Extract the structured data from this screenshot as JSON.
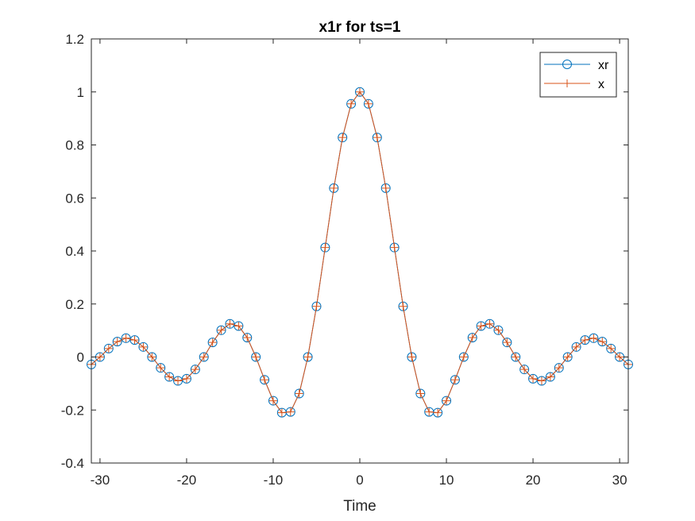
{
  "chart_data": {
    "type": "line",
    "title": "x1r for ts=1",
    "xlabel": "Time",
    "ylabel": "",
    "xlim": [
      -31,
      31
    ],
    "ylim": [
      -0.4,
      1.2
    ],
    "xticks": [
      -30,
      -20,
      -10,
      0,
      10,
      20,
      30
    ],
    "yticks": [
      -0.4,
      -0.2,
      0,
      0.2,
      0.4,
      0.6,
      0.8,
      1,
      1.2
    ],
    "ytick_labels": [
      "-0.4",
      "-0.2",
      "0",
      "0.2",
      "0.4",
      "0.6",
      "0.8",
      "1",
      "1.2"
    ],
    "grid": false,
    "legend_position": "top-right",
    "x": [
      -31,
      -30,
      -29,
      -28,
      -27,
      -26,
      -25,
      -24,
      -23,
      -22,
      -21,
      -20,
      -19,
      -18,
      -17,
      -16,
      -15,
      -14,
      -13,
      -12,
      -11,
      -10,
      -9,
      -8,
      -7,
      -6,
      -5,
      -4,
      -3,
      -2,
      -1,
      0,
      1,
      2,
      3,
      4,
      5,
      6,
      7,
      8,
      9,
      10,
      11,
      12,
      13,
      14,
      15,
      16,
      17,
      18,
      19,
      20,
      21,
      22,
      23,
      24,
      25,
      26,
      27,
      28,
      29,
      30,
      31
    ],
    "series": [
      {
        "name": "xr",
        "color": "#0072BD",
        "marker": "circle",
        "values": [
          -0.028,
          0.0,
          0.032,
          0.058,
          0.071,
          0.064,
          0.038,
          0.0,
          -0.041,
          -0.075,
          -0.09,
          -0.082,
          -0.047,
          0.0,
          0.055,
          0.101,
          0.125,
          0.117,
          0.073,
          0.0,
          -0.086,
          -0.165,
          -0.21,
          -0.207,
          -0.138,
          0.0,
          0.191,
          0.413,
          0.637,
          0.828,
          0.955,
          1.0,
          0.955,
          0.828,
          0.637,
          0.413,
          0.191,
          0.0,
          -0.138,
          -0.207,
          -0.21,
          -0.165,
          -0.086,
          0.0,
          0.073,
          0.117,
          0.125,
          0.101,
          0.055,
          0.0,
          -0.047,
          -0.082,
          -0.09,
          -0.075,
          -0.041,
          0.0,
          0.038,
          0.064,
          0.071,
          0.058,
          0.032,
          0.0,
          -0.028
        ]
      },
      {
        "name": "x",
        "color": "#D95319",
        "marker": "plus",
        "values": [
          -0.028,
          0.0,
          0.032,
          0.058,
          0.071,
          0.064,
          0.038,
          0.0,
          -0.041,
          -0.075,
          -0.09,
          -0.082,
          -0.047,
          0.0,
          0.055,
          0.101,
          0.125,
          0.117,
          0.073,
          0.0,
          -0.086,
          -0.165,
          -0.21,
          -0.207,
          -0.138,
          0.0,
          0.191,
          0.413,
          0.637,
          0.828,
          0.955,
          1.0,
          0.955,
          0.828,
          0.637,
          0.413,
          0.191,
          0.0,
          -0.138,
          -0.207,
          -0.21,
          -0.165,
          -0.086,
          0.0,
          0.073,
          0.117,
          0.125,
          0.101,
          0.055,
          0.0,
          -0.047,
          -0.082,
          -0.09,
          -0.075,
          -0.041,
          0.0,
          0.038,
          0.064,
          0.071,
          0.058,
          0.032,
          0.0,
          -0.028
        ]
      }
    ]
  }
}
